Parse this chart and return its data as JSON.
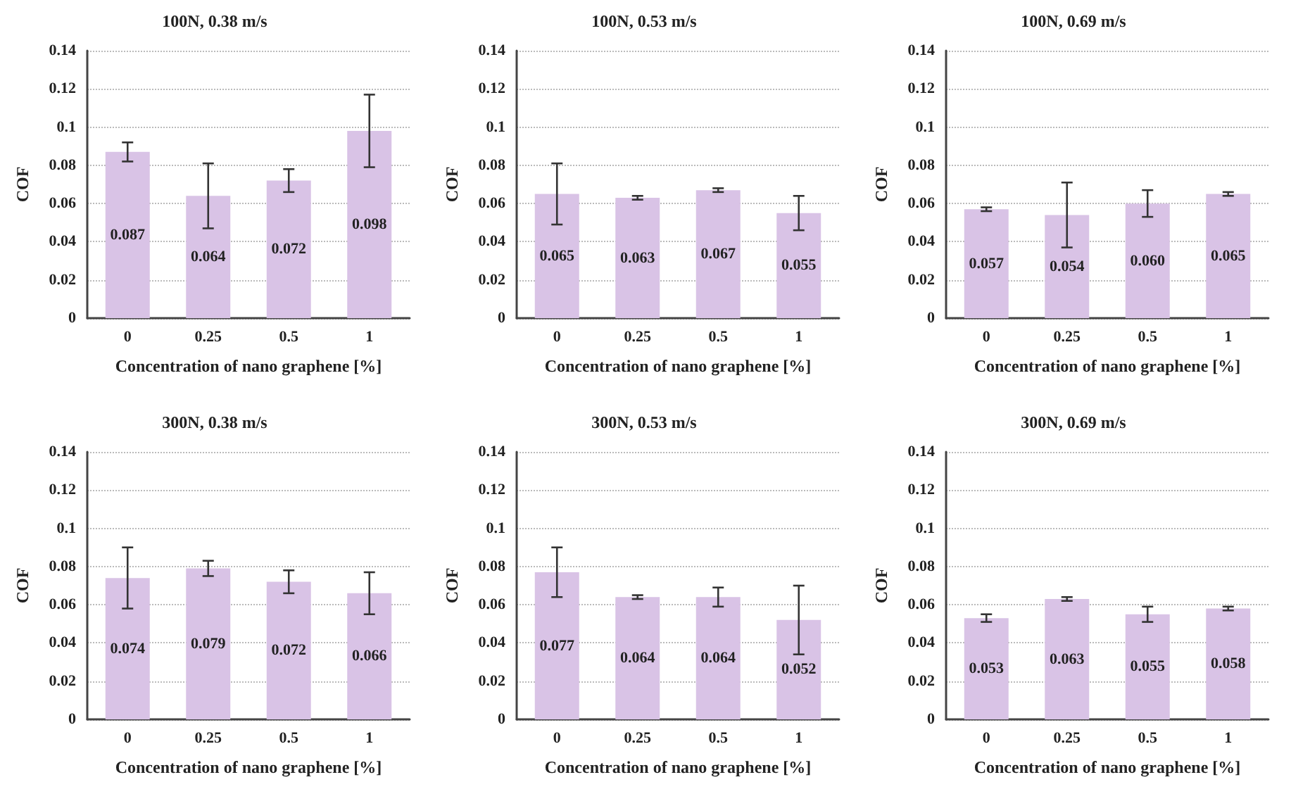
{
  "chart_data": [
    {
      "type": "bar",
      "title": "100N, 0.38 m/s",
      "xlabel": "Concentration of nano graphene [%]",
      "ylabel": "COF",
      "categories": [
        "0",
        "0.25",
        "0.5",
        "1"
      ],
      "values": [
        0.087,
        0.064,
        0.072,
        0.098
      ],
      "errors": [
        0.005,
        0.017,
        0.006,
        0.019
      ],
      "value_labels": [
        "0.087",
        "0.064",
        "0.072",
        "0.098"
      ],
      "color": "#d9c3e6",
      "ylim": [
        0,
        0.14
      ],
      "yticks": [
        0,
        0.02,
        0.04,
        0.06,
        0.08,
        0.1,
        0.12,
        0.14
      ],
      "grid": "y"
    },
    {
      "type": "bar",
      "title": "100N, 0.53 m/s",
      "xlabel": "Concentration of nano graphene [%]",
      "ylabel": "COF",
      "categories": [
        "0",
        "0.25",
        "0.5",
        "1"
      ],
      "values": [
        0.065,
        0.063,
        0.067,
        0.055
      ],
      "errors": [
        0.016,
        0.001,
        0.001,
        0.009
      ],
      "value_labels": [
        "0.065",
        "0.063",
        "0.067",
        "0.055"
      ],
      "color": "#d9c3e6",
      "ylim": [
        0,
        0.14
      ],
      "yticks": [
        0,
        0.02,
        0.04,
        0.06,
        0.08,
        0.1,
        0.12,
        0.14
      ],
      "grid": "y"
    },
    {
      "type": "bar",
      "title": "100N, 0.69 m/s",
      "xlabel": "Concentration of nano graphene [%]",
      "ylabel": "COF",
      "categories": [
        "0",
        "0.25",
        "0.5",
        "1"
      ],
      "values": [
        0.057,
        0.054,
        0.06,
        0.065
      ],
      "errors": [
        0.001,
        0.017,
        0.007,
        0.001
      ],
      "value_labels": [
        "0.057",
        "0.054",
        "0.060",
        "0.065"
      ],
      "color": "#d9c3e6",
      "ylim": [
        0,
        0.14
      ],
      "yticks": [
        0,
        0.02,
        0.04,
        0.06,
        0.08,
        0.1,
        0.12,
        0.14
      ],
      "grid": "y"
    },
    {
      "type": "bar",
      "title": "300N, 0.38 m/s",
      "xlabel": "Concentration of nano graphene [%]",
      "ylabel": "COF",
      "categories": [
        "0",
        "0.25",
        "0.5",
        "1"
      ],
      "values": [
        0.074,
        0.079,
        0.072,
        0.066
      ],
      "errors": [
        0.016,
        0.004,
        0.006,
        0.011
      ],
      "value_labels": [
        "0.074",
        "0.079",
        "0.072",
        "0.066"
      ],
      "color": "#d9c3e6",
      "ylim": [
        0,
        0.14
      ],
      "yticks": [
        0,
        0.02,
        0.04,
        0.06,
        0.08,
        0.1,
        0.12,
        0.14
      ],
      "grid": "y"
    },
    {
      "type": "bar",
      "title": "300N, 0.53 m/s",
      "xlabel": "Concentration of nano graphene [%]",
      "ylabel": "COF",
      "categories": [
        "0",
        "0.25",
        "0.5",
        "1"
      ],
      "values": [
        0.077,
        0.064,
        0.064,
        0.052
      ],
      "errors": [
        0.013,
        0.001,
        0.005,
        0.018
      ],
      "value_labels": [
        "0.077",
        "0.064",
        "0.064",
        "0.052"
      ],
      "color": "#d9c3e6",
      "ylim": [
        0,
        0.14
      ],
      "yticks": [
        0,
        0.02,
        0.04,
        0.06,
        0.08,
        0.1,
        0.12,
        0.14
      ],
      "grid": "y"
    },
    {
      "type": "bar",
      "title": "300N, 0.69 m/s",
      "xlabel": "Concentration of nano graphene [%]",
      "ylabel": "COF",
      "categories": [
        "0",
        "0.25",
        "0.5",
        "1"
      ],
      "values": [
        0.053,
        0.063,
        0.055,
        0.058
      ],
      "errors": [
        0.002,
        0.001,
        0.004,
        0.001
      ],
      "value_labels": [
        "0.053",
        "0.063",
        "0.055",
        "0.058"
      ],
      "color": "#d9c3e6",
      "ylim": [
        0,
        0.14
      ],
      "yticks": [
        0,
        0.02,
        0.04,
        0.06,
        0.08,
        0.1,
        0.12,
        0.14
      ],
      "grid": "y"
    }
  ]
}
